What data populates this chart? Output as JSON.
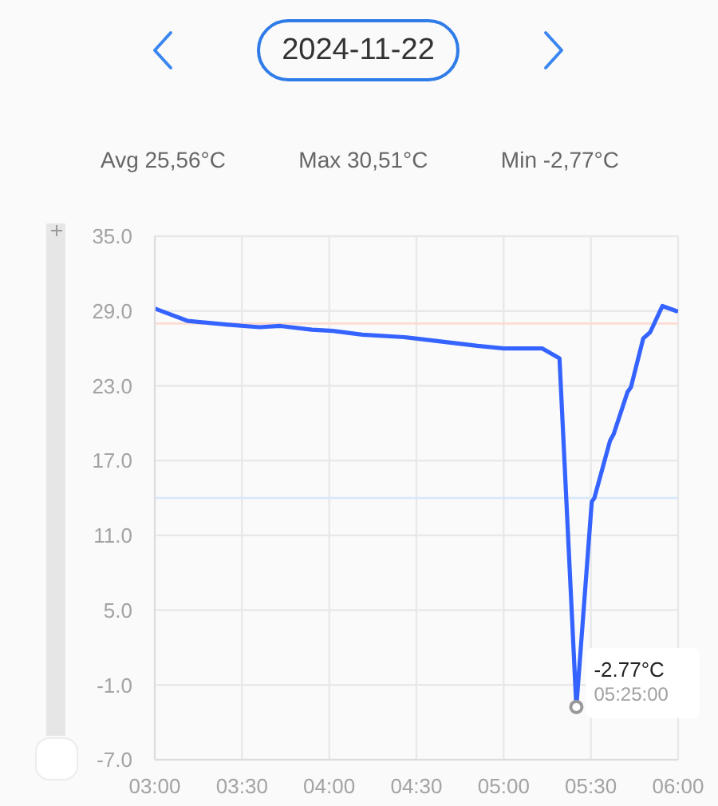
{
  "chart_data": {
    "type": "line",
    "title": "2024-11-22",
    "annotations": [
      "Avg 25,56°C",
      "Max 30,51°C",
      "Min -2,77°C",
      {
        "text": "-2.77°C",
        "x": 5.4167,
        "y": -2.77
      },
      {
        "text": "05:25:00",
        "x": 5.4167,
        "y": -2.77
      }
    ],
    "x": [
      3.0,
      3.19,
      3.42,
      3.6,
      3.72,
      3.9,
      4.02,
      4.19,
      4.43,
      4.61,
      4.85,
      5.0,
      5.22,
      5.32,
      5.4167,
      5.505,
      5.52,
      5.61,
      5.63,
      5.71,
      5.73,
      5.8,
      5.84,
      5.91,
      5.99
    ],
    "series": [
      {
        "color": "#3563ff",
        "values": [
          29.2,
          28.2,
          27.9,
          27.7,
          27.8,
          27.5,
          27.4,
          27.1,
          26.9,
          26.6,
          26.2,
          26.0,
          26.0,
          25.2,
          -2.77,
          13.7,
          14.0,
          18.6,
          19.1,
          22.5,
          22.9,
          26.8,
          27.3,
          29.4,
          29.0
        ]
      }
    ],
    "xlim": [
      3,
      6
    ],
    "xticks": [
      {
        "value": 3,
        "label": "03:00"
      },
      {
        "value": 3.5,
        "label": "03:30"
      },
      {
        "value": 4,
        "label": "04:00"
      },
      {
        "value": 4.5,
        "label": "04:30"
      },
      {
        "value": 5,
        "label": "05:00"
      },
      {
        "value": 5.5,
        "label": "05:30"
      },
      {
        "value": 6,
        "label": "06:00"
      }
    ],
    "ylim": [
      -7,
      35
    ],
    "yticks": [
      {
        "value": -7,
        "label": "-7.0"
      },
      {
        "value": -1,
        "label": "-1.0"
      },
      {
        "value": 5,
        "label": "5.0"
      },
      {
        "value": 11,
        "label": "11.0"
      },
      {
        "value": 17,
        "label": "17.0"
      },
      {
        "value": 23,
        "label": "23.0"
      },
      {
        "value": 29,
        "label": "29.0"
      },
      {
        "value": 35,
        "label": "35.0"
      }
    ],
    "grid": true,
    "ref_lines": [
      {
        "axis": "y",
        "value": 28,
        "color": "#fcdcd2"
      },
      {
        "axis": "y",
        "value": 14,
        "color": "#d6e8fb"
      }
    ],
    "line_style": "solid"
  }
}
